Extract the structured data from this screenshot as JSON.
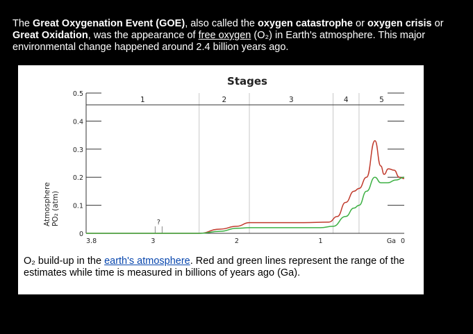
{
  "intro": {
    "t1": "The ",
    "b1": "Great Oxygenation Event (GOE)",
    "t2": ", also called the ",
    "b2": "oxygen catastrophe",
    "t3": " or ",
    "b3": "oxygen crisis",
    "t4": " or ",
    "b4": "Great Oxidation",
    "t5": ", was the appearance of ",
    "link1": "free oxygen",
    "t6": " (O₂) in Earth's atmosphere. This major environmental change happened around 2.4 billion years ago."
  },
  "caption": {
    "t1": "O₂ build-up in the ",
    "link": "earth's atmosphere",
    "t2": ". Red and green lines represent the range of the estimates while time is measured in billions of years ago (Ga)."
  },
  "chart_data": {
    "type": "line",
    "title": "Stages",
    "ylabel_line1": "Atmosphere",
    "ylabel_line2": "PO₂ (atm)",
    "xlabel": "Ga",
    "x_ticks": [
      "3.8",
      "3",
      "2",
      "1",
      "0"
    ],
    "x_tick_values": [
      3.8,
      3,
      2,
      1,
      0
    ],
    "y_ticks": [
      "0",
      "0.1",
      "0.2",
      "0.3",
      "0.4",
      "0.5"
    ],
    "y_tick_values": [
      0,
      0.1,
      0.2,
      0.3,
      0.4,
      0.5
    ],
    "xlim": [
      3.8,
      0
    ],
    "ylim": [
      0,
      0.5
    ],
    "stage_boundaries": [
      2.45,
      1.85,
      0.85,
      0.54
    ],
    "stages": [
      {
        "label": "1",
        "from": 3.8,
        "to": 2.45
      },
      {
        "label": "2",
        "from": 2.45,
        "to": 1.85
      },
      {
        "label": "3",
        "from": 1.85,
        "to": 0.85
      },
      {
        "label": "4",
        "from": 0.85,
        "to": 0.54
      },
      {
        "label": "5",
        "from": 0.54,
        "to": 0
      }
    ],
    "question_mark": {
      "text": "?",
      "x": 3.0
    },
    "grid": false,
    "series": [
      {
        "color": "#c0392b",
        "x": [
          3.8,
          2.45,
          2.2,
          2.0,
          1.85,
          1.2,
          0.9,
          0.8,
          0.7,
          0.6,
          0.54,
          0.45,
          0.35,
          0.28,
          0.24,
          0.19,
          0.12,
          0.06,
          0.0
        ],
        "y": [
          0,
          0,
          0.015,
          0.025,
          0.038,
          0.038,
          0.04,
          0.06,
          0.11,
          0.15,
          0.16,
          0.2,
          0.33,
          0.24,
          0.21,
          0.23,
          0.225,
          0.2,
          0.195
        ]
      },
      {
        "color": "#3cb043",
        "x": [
          3.8,
          2.45,
          2.2,
          2.0,
          1.85,
          1.2,
          1.0,
          0.85,
          0.7,
          0.6,
          0.54,
          0.45,
          0.35,
          0.28,
          0.2,
          0.1,
          0.0
        ],
        "y": [
          0,
          0,
          0.007,
          0.018,
          0.02,
          0.02,
          0.02,
          0.025,
          0.06,
          0.09,
          0.1,
          0.15,
          0.2,
          0.18,
          0.18,
          0.19,
          0.2
        ]
      }
    ]
  }
}
